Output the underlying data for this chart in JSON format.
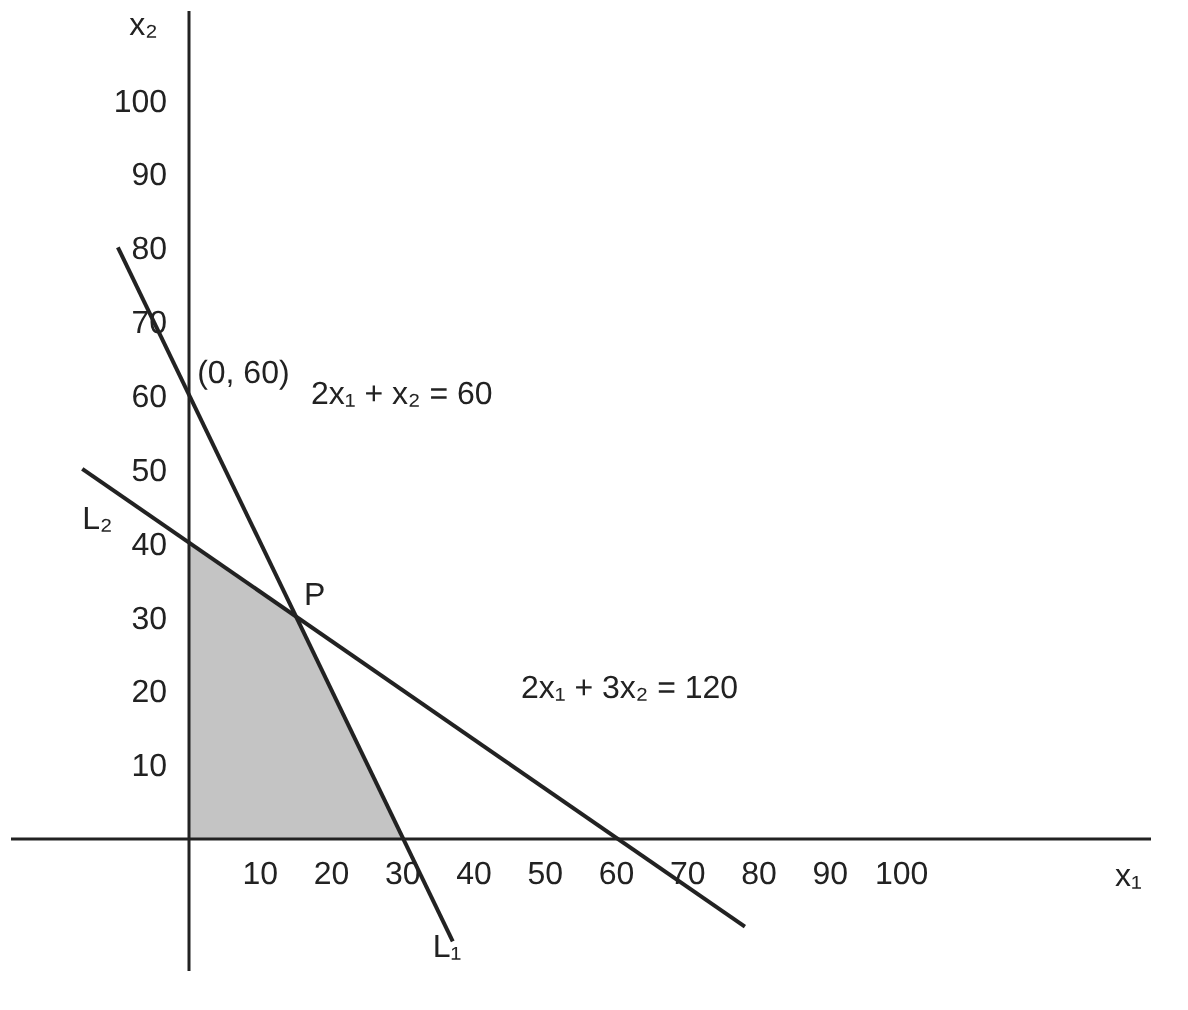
{
  "chart_data": {
    "type": "line",
    "xlabel": "x₁",
    "ylabel": "x₂",
    "xlim": [
      -25,
      135
    ],
    "ylim": [
      -18,
      112
    ],
    "xticks": [
      10,
      20,
      30,
      40,
      50,
      60,
      70,
      80,
      90,
      100
    ],
    "yticks": [
      10,
      20,
      30,
      40,
      50,
      60,
      70,
      80,
      90,
      100
    ],
    "grid": false,
    "series": [
      {
        "name": "L₁",
        "color": "#222222",
        "x": [
          -10,
          37
        ],
        "values": [
          80,
          -14
        ]
      },
      {
        "name": "L₂",
        "color": "#222222",
        "x": [
          -15,
          78
        ],
        "values": [
          50,
          -12
        ]
      },
      {
        "type": "area",
        "color": "#c4c4c4",
        "x": [
          0,
          15,
          30
        ],
        "values": [
          40,
          30,
          0
        ]
      }
    ],
    "annotations": [
      {
        "text": "(0, 60)",
        "x": 0,
        "y": 60
      },
      "2x₁ + x₂ = 60",
      {
        "text": "P",
        "x": 15,
        "y": 30
      },
      "2x₁ + 3x₂ = 120"
    ]
  }
}
